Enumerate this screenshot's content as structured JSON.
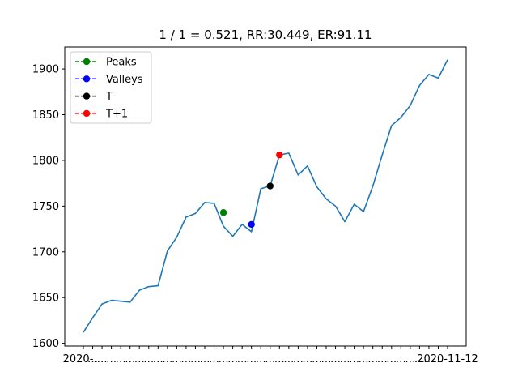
{
  "chart_data": {
    "type": "line",
    "title": "1 / 1 = 0.521, RR:30.449, ER:91.11",
    "xlabel": "",
    "ylabel": "",
    "ylim": [
      1597,
      1924
    ],
    "y_ticks": [
      1600,
      1650,
      1700,
      1750,
      1800,
      1850,
      1900
    ],
    "x_tick_labels": [
      "2020-…",
      "…",
      "2020-11-12"
    ],
    "grid": false,
    "legend_position": "upper-left",
    "series": [
      {
        "color": "#1f77b4",
        "values": [
          1612,
          1628,
          1643,
          1647,
          1646,
          1645,
          1658,
          1662,
          1663,
          1701,
          1716,
          1738,
          1742,
          1754,
          1753,
          1728,
          1717,
          1730,
          1722,
          1769,
          1772,
          1806,
          1808,
          1784,
          1794,
          1771,
          1758,
          1750,
          1733,
          1752,
          1744,
          1772,
          1806,
          1838,
          1847,
          1860,
          1882,
          1894,
          1890,
          1910
        ]
      }
    ],
    "markers": [
      {
        "name": "Peaks",
        "color": "#008000",
        "x": 15,
        "y": 1743
      },
      {
        "name": "Valleys",
        "color": "#0000ff",
        "x": 18,
        "y": 1730
      },
      {
        "name": "T",
        "color": "#000000",
        "x": 20,
        "y": 1772
      },
      {
        "name": "T+1",
        "color": "#ff0000",
        "x": 21,
        "y": 1806
      }
    ],
    "legend": [
      {
        "label": "Peaks",
        "color": "#008000"
      },
      {
        "label": "Valleys",
        "color": "#0000ff"
      },
      {
        "label": "T",
        "color": "#000000"
      },
      {
        "label": "T+1",
        "color": "#ff0000"
      }
    ]
  }
}
